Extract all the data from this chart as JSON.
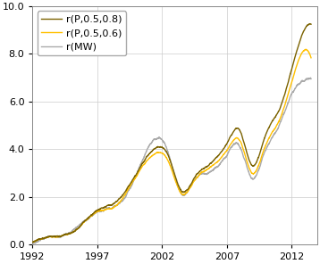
{
  "title": "",
  "xlabel": "",
  "ylabel": "",
  "xlim": [
    1992,
    2014
  ],
  "ylim": [
    0.0,
    10.0
  ],
  "xticks": [
    1992,
    1997,
    2002,
    2007,
    2012
  ],
  "yticks": [
    0.0,
    2.0,
    4.0,
    6.0,
    8.0,
    10.0
  ],
  "series": {
    "r(P,0.5,0.8)": {
      "color": "#7B6200",
      "linewidth": 1.0
    },
    "r(P,0.5,0.6)": {
      "color": "#FFC000",
      "linewidth": 1.0
    },
    "r(MW)": {
      "color": "#AAAAAA",
      "linewidth": 1.0
    }
  },
  "legend_fontsize": 8,
  "tick_fontsize": 8,
  "background_color": "#ffffff",
  "grid_color": "#cccccc",
  "waypoints_x": [
    1992.0,
    1993.0,
    1994.5,
    1995.5,
    1997.0,
    1998.5,
    2000.0,
    2001.5,
    2002.5,
    2003.5,
    2004.5,
    2005.5,
    2007.0,
    2008.0,
    2009.0,
    2010.0,
    2011.0,
    2012.0,
    2012.5,
    2013.5
  ],
  "waypoints_p08": [
    0.1,
    0.3,
    0.5,
    0.8,
    1.5,
    1.9,
    3.2,
    4.2,
    3.8,
    2.4,
    3.0,
    3.5,
    4.4,
    4.9,
    3.5,
    4.8,
    5.8,
    7.5,
    8.5,
    9.5
  ],
  "waypoints_p06": [
    0.1,
    0.3,
    0.5,
    0.8,
    1.5,
    1.85,
    3.15,
    4.1,
    3.7,
    2.35,
    2.9,
    3.4,
    4.2,
    4.6,
    3.3,
    4.5,
    5.5,
    7.1,
    8.0,
    8.2
  ],
  "waypoints_mw": [
    0.05,
    0.25,
    0.45,
    0.75,
    1.45,
    1.75,
    3.05,
    4.5,
    3.9,
    2.3,
    2.8,
    3.2,
    4.0,
    4.3,
    3.0,
    4.2,
    5.2,
    6.5,
    7.0,
    7.2
  ]
}
